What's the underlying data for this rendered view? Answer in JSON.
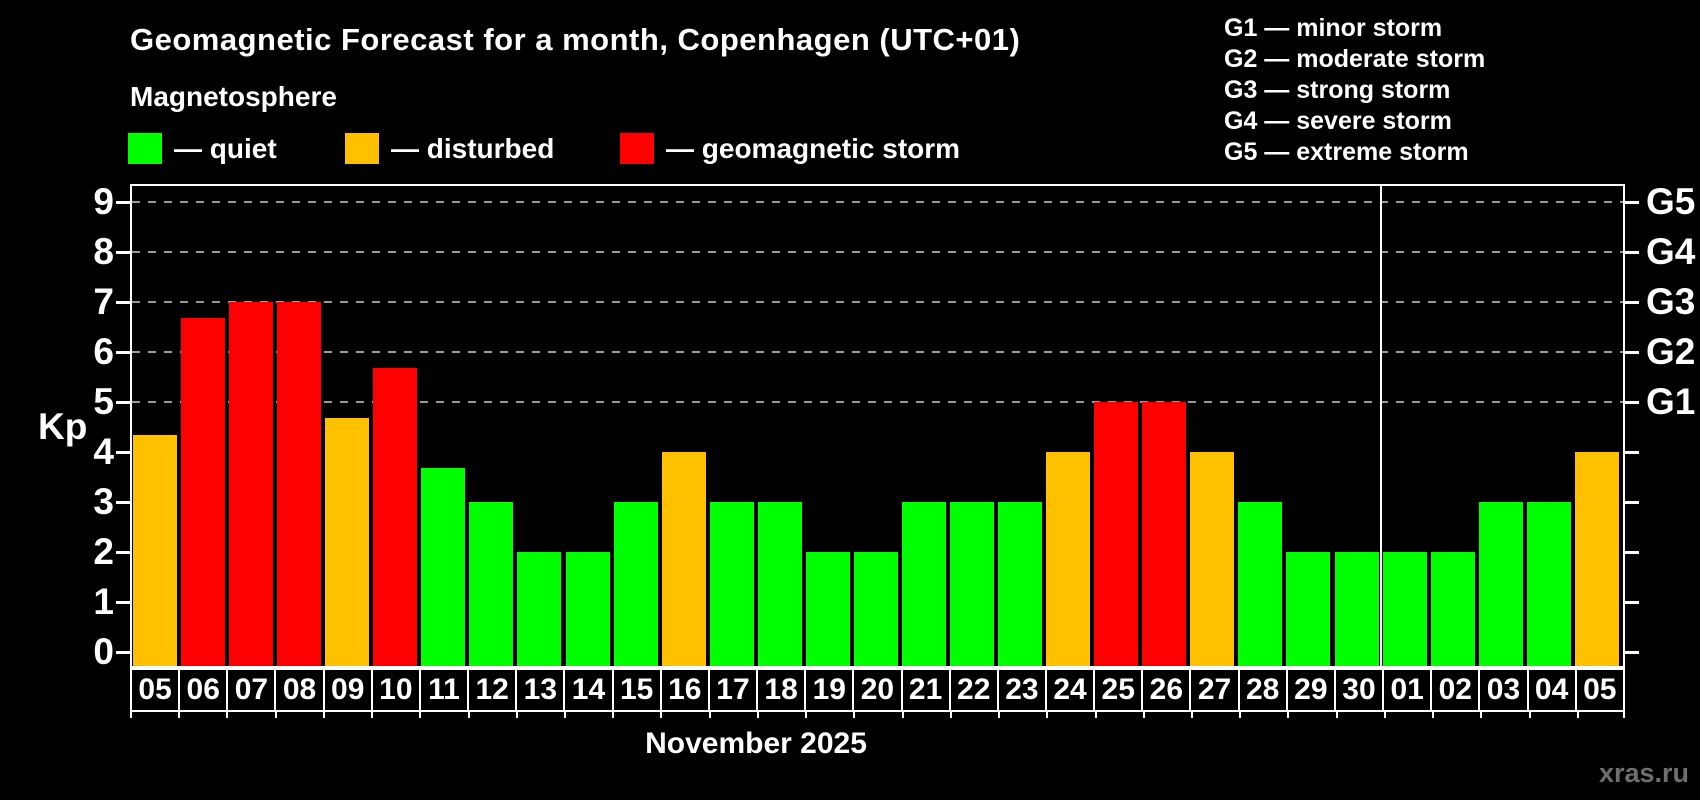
{
  "title": "Geomagnetic Forecast for a month, Copenhagen (UTC+01)",
  "subtitle": "Magnetosphere",
  "legend": {
    "items": [
      {
        "name": "quiet",
        "label": "— quiet",
        "color": "#00ff00"
      },
      {
        "name": "disturbed",
        "label": "— disturbed",
        "color": "#ffc000"
      },
      {
        "name": "storm",
        "label": "— geomagnetic storm",
        "color": "#ff0000"
      }
    ]
  },
  "g_legend": {
    "lines": [
      "G1 — minor storm",
      "G2 — moderate storm",
      "G3 — strong storm",
      "G4 — severe storm",
      "G5 — extreme storm"
    ]
  },
  "watermark": "xras.ru",
  "chart_data": {
    "type": "bar",
    "title": "Geomagnetic Forecast for a month, Copenhagen (UTC+01)",
    "ylabel": "Kp",
    "xlabel": "November 2025",
    "ylim": [
      0,
      9
    ],
    "yticks": [
      0,
      1,
      2,
      3,
      4,
      5,
      6,
      7,
      8,
      9
    ],
    "gridlines_at_kp": [
      5,
      6,
      7,
      8,
      9
    ],
    "grid": "dashed horizontal at Kp 5-9 only",
    "legend_position": "top-left",
    "right_axis": [
      {
        "kp": 5,
        "label": "G1"
      },
      {
        "kp": 6,
        "label": "G2"
      },
      {
        "kp": 7,
        "label": "G3"
      },
      {
        "kp": 8,
        "label": "G4"
      },
      {
        "kp": 9,
        "label": "G5"
      }
    ],
    "month_separator_before_index": 26,
    "level_colors": {
      "quiet": "#00ff00",
      "disturbed": "#ffc000",
      "storm": "#ff0000"
    },
    "bars": [
      {
        "date": "05",
        "kp": 4.33,
        "level": "disturbed"
      },
      {
        "date": "06",
        "kp": 6.67,
        "level": "storm"
      },
      {
        "date": "07",
        "kp": 7,
        "level": "storm"
      },
      {
        "date": "08",
        "kp": 7,
        "level": "storm"
      },
      {
        "date": "09",
        "kp": 4.67,
        "level": "disturbed"
      },
      {
        "date": "10",
        "kp": 5.67,
        "level": "storm"
      },
      {
        "date": "11",
        "kp": 3.67,
        "level": "quiet"
      },
      {
        "date": "12",
        "kp": 3,
        "level": "quiet"
      },
      {
        "date": "13",
        "kp": 2,
        "level": "quiet"
      },
      {
        "date": "14",
        "kp": 2,
        "level": "quiet"
      },
      {
        "date": "15",
        "kp": 3,
        "level": "quiet"
      },
      {
        "date": "16",
        "kp": 4,
        "level": "disturbed"
      },
      {
        "date": "17",
        "kp": 3,
        "level": "quiet"
      },
      {
        "date": "18",
        "kp": 3,
        "level": "quiet"
      },
      {
        "date": "19",
        "kp": 2,
        "level": "quiet"
      },
      {
        "date": "20",
        "kp": 2,
        "level": "quiet"
      },
      {
        "date": "21",
        "kp": 3,
        "level": "quiet"
      },
      {
        "date": "22",
        "kp": 3,
        "level": "quiet"
      },
      {
        "date": "23",
        "kp": 3,
        "level": "quiet"
      },
      {
        "date": "24",
        "kp": 4,
        "level": "disturbed"
      },
      {
        "date": "25",
        "kp": 5,
        "level": "storm"
      },
      {
        "date": "26",
        "kp": 5,
        "level": "storm"
      },
      {
        "date": "27",
        "kp": 4,
        "level": "disturbed"
      },
      {
        "date": "28",
        "kp": 3,
        "level": "quiet"
      },
      {
        "date": "29",
        "kp": 2,
        "level": "quiet"
      },
      {
        "date": "30",
        "kp": 2,
        "level": "quiet"
      },
      {
        "date": "01",
        "kp": 2,
        "level": "quiet"
      },
      {
        "date": "02",
        "kp": 2,
        "level": "quiet"
      },
      {
        "date": "03",
        "kp": 3,
        "level": "quiet"
      },
      {
        "date": "04",
        "kp": 3,
        "level": "quiet"
      },
      {
        "date": "05",
        "kp": 4,
        "level": "disturbed"
      }
    ]
  }
}
